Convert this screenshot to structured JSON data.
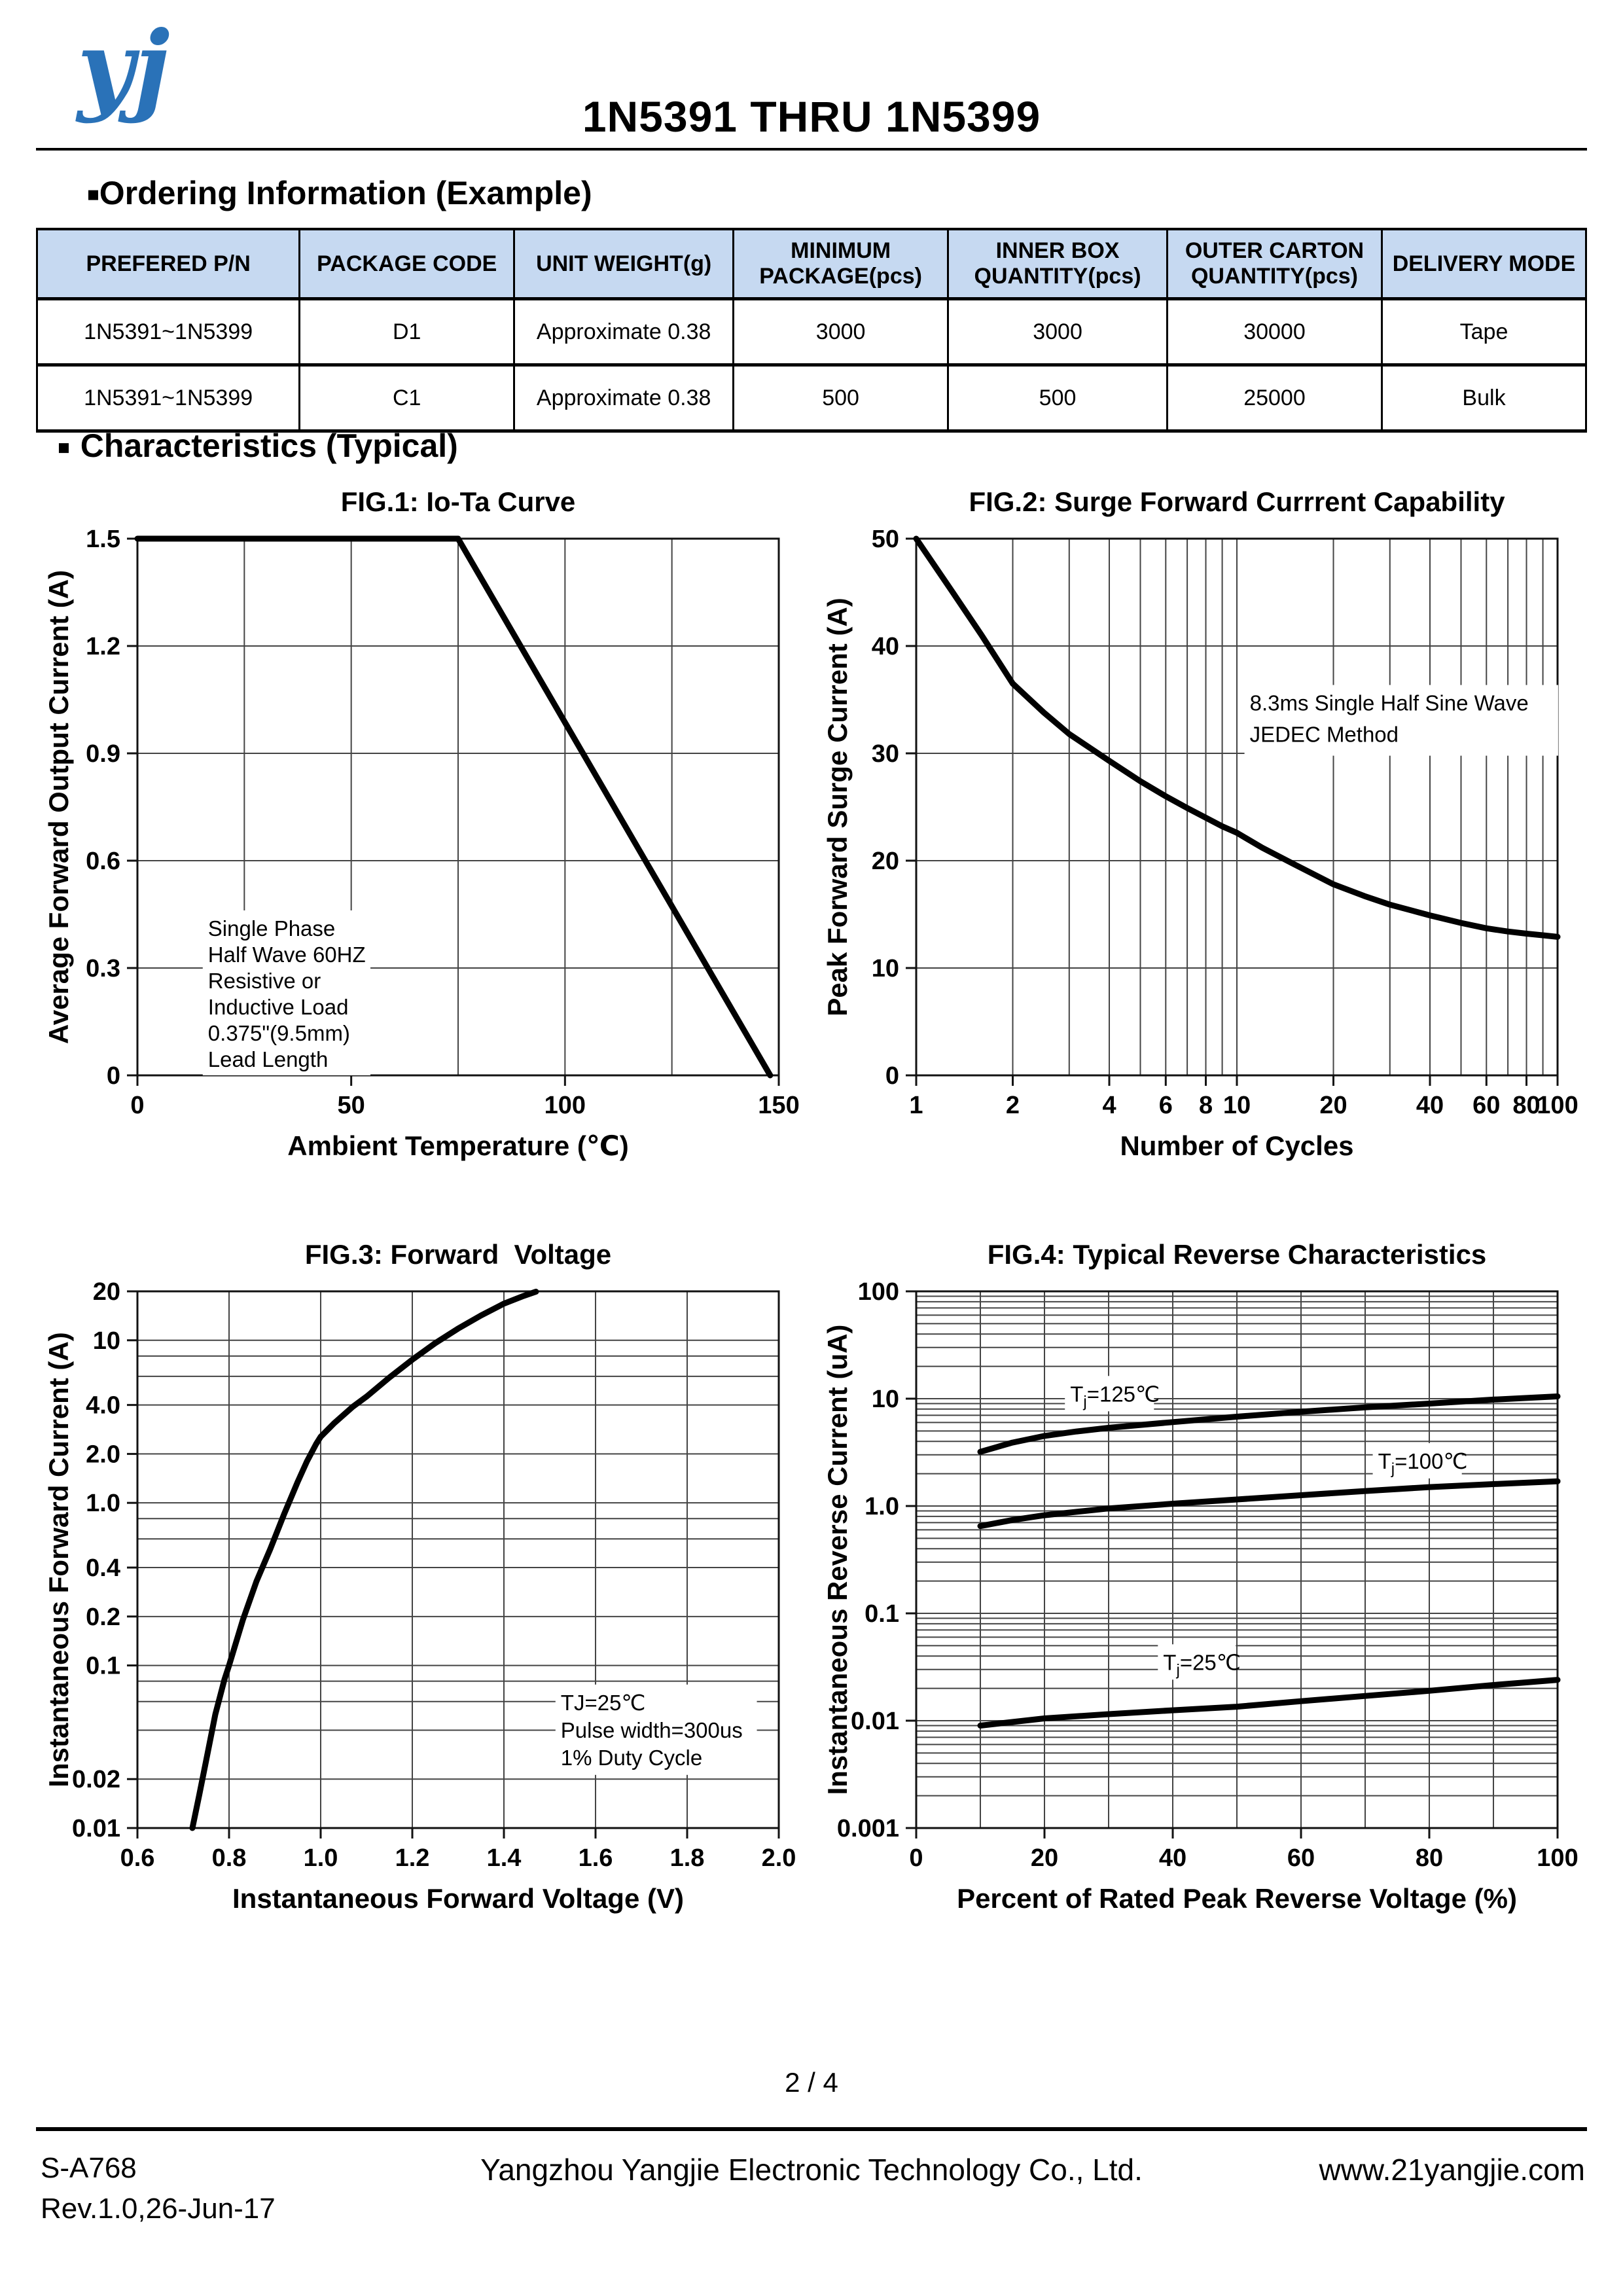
{
  "header": {
    "logo_text": "yj",
    "logo_color": "#2a72b8",
    "title": "1N5391 THRU 1N5399"
  },
  "ordering": {
    "bullet": "■",
    "heading": "Ordering Information (Example)",
    "table": {
      "headers": [
        "PREFERED P/N",
        "PACKAGE CODE",
        "UNIT WEIGHT(g)",
        "MINIMUM\nPACKAGE(pcs)",
        "INNER BOX\nQUANTITY(pcs)",
        "OUTER CARTON\nQUANTITY(pcs)",
        "DELIVERY MODE"
      ],
      "header_bg": "#c6d9f1",
      "rows": [
        [
          "1N5391~1N5399",
          "D1",
          "Approximate 0.38",
          "3000",
          "3000",
          "30000",
          "Tape"
        ],
        [
          "1N5391~1N5399",
          "C1",
          "Approximate 0.38",
          "500",
          "500",
          "25000",
          "Bulk"
        ]
      ]
    }
  },
  "characteristics": {
    "bullet": "■",
    "heading": "Characteristics (Typical)"
  },
  "chart_data": [
    {
      "type": "line",
      "title": "FIG.1: Io-Ta Curve",
      "x": {
        "scale": "linear",
        "min": 0,
        "max": 150,
        "title": "Ambient Temperature (℃)",
        "ticks": [
          {
            "v": 0,
            "label": "0"
          },
          {
            "v": 50,
            "label": "50"
          },
          {
            "v": 100,
            "label": "100"
          },
          {
            "v": 150,
            "label": "150"
          }
        ],
        "grid": [
          25,
          50,
          75,
          100,
          125
        ]
      },
      "y": {
        "scale": "linear",
        "min": 0,
        "max": 1.5,
        "title": "Average Forward Output Current (A)",
        "ticks": [
          {
            "v": 0,
            "label": "0"
          },
          {
            "v": 0.3,
            "label": "0.3"
          },
          {
            "v": 0.6,
            "label": "0.6"
          },
          {
            "v": 0.9,
            "label": "0.9"
          },
          {
            "v": 1.2,
            "label": "1.2"
          },
          {
            "v": 1.5,
            "label": "1.5"
          }
        ],
        "grid": [
          0.3,
          0.6,
          0.9,
          1.2,
          1.5
        ]
      },
      "series": [
        {
          "name": "Io vs Ta",
          "points": [
            [
              0,
              1.5
            ],
            [
              75,
              1.5
            ],
            [
              148,
              0
            ]
          ]
        }
      ],
      "annotations": [
        {
          "fx": 0.11,
          "fy": 0.7,
          "lh": 40,
          "lines": [
            "Single Phase",
            "Half Wave 60HZ",
            "Resistive or",
            "Inductive Load",
            "0.375\"(9.5mm)",
            "Lead Length"
          ]
        }
      ]
    },
    {
      "type": "line",
      "title": "FIG.2: Surge Forward Currrent Capability",
      "x": {
        "scale": "log",
        "min": 1,
        "max": 100,
        "title": "Number of Cycles",
        "ticks": [
          {
            "v": 1,
            "label": "1"
          },
          {
            "v": 2,
            "label": "2"
          },
          {
            "v": 4,
            "label": "4"
          },
          {
            "v": 6,
            "label": "6"
          },
          {
            "v": 8,
            "label": "8"
          },
          {
            "v": 10,
            "label": "10"
          },
          {
            "v": 20,
            "label": "20"
          },
          {
            "v": 40,
            "label": "40"
          },
          {
            "v": 60,
            "label": "60"
          },
          {
            "v": 80,
            "label": "80"
          },
          {
            "v": 100,
            "label": "100"
          }
        ],
        "grid": [
          2,
          3,
          4,
          5,
          6,
          7,
          8,
          9,
          10,
          20,
          30,
          40,
          50,
          60,
          70,
          80,
          90
        ]
      },
      "y": {
        "scale": "linear",
        "min": 0,
        "max": 50,
        "title": "Peak Forward Surge Current (A)",
        "ticks": [
          {
            "v": 0,
            "label": "0"
          },
          {
            "v": 10,
            "label": "10"
          },
          {
            "v": 20,
            "label": "20"
          },
          {
            "v": 30,
            "label": "30"
          },
          {
            "v": 40,
            "label": "40"
          },
          {
            "v": 50,
            "label": "50"
          }
        ],
        "grid": [
          10,
          20,
          30,
          40
        ]
      },
      "series": [
        {
          "name": "surge capability",
          "points": [
            [
              1,
              50
            ],
            [
              1.3,
              45
            ],
            [
              1.6,
              41
            ],
            [
              2,
              36.5
            ],
            [
              2.5,
              33.8
            ],
            [
              3,
              31.8
            ],
            [
              4,
              29.3
            ],
            [
              5,
              27.4
            ],
            [
              6,
              26
            ],
            [
              7,
              24.9
            ],
            [
              8,
              24
            ],
            [
              9,
              23.2
            ],
            [
              10,
              22.6
            ],
            [
              12,
              21.2
            ],
            [
              15,
              19.7
            ],
            [
              20,
              17.8
            ],
            [
              25,
              16.7
            ],
            [
              30,
              15.9
            ],
            [
              40,
              14.9
            ],
            [
              50,
              14.2
            ],
            [
              60,
              13.7
            ],
            [
              70,
              13.4
            ],
            [
              80,
              13.2
            ],
            [
              90,
              13.05
            ],
            [
              100,
              12.9
            ]
          ]
        }
      ],
      "annotations": [
        {
          "fx": 0.52,
          "fy": 0.28,
          "lh": 48,
          "lines": [
            "8.3ms Single Half Sine Wave",
            "JEDEC Method"
          ]
        }
      ]
    },
    {
      "type": "line",
      "title": "FIG.3: Forward  Voltage",
      "x": {
        "scale": "linear",
        "min": 0.6,
        "max": 2.0,
        "title": "Instantaneous Forward Voltage (V)",
        "ticks": [
          {
            "v": 0.6,
            "label": "0.6"
          },
          {
            "v": 0.8,
            "label": "0.8"
          },
          {
            "v": 1.0,
            "label": "1.0"
          },
          {
            "v": 1.2,
            "label": "1.2"
          },
          {
            "v": 1.4,
            "label": "1.4"
          },
          {
            "v": 1.6,
            "label": "1.6"
          },
          {
            "v": 1.8,
            "label": "1.8"
          },
          {
            "v": 2.0,
            "label": "2.0"
          }
        ],
        "grid": [
          0.8,
          1.0,
          1.2,
          1.4,
          1.6,
          1.8
        ]
      },
      "y": {
        "scale": "log",
        "min": 0.01,
        "max": 20,
        "title": "Instantaneous Forward Current (A)",
        "ticks": [
          {
            "v": 20,
            "label": "20"
          },
          {
            "v": 10,
            "label": "10"
          },
          {
            "v": 4,
            "label": "4.0"
          },
          {
            "v": 2,
            "label": "2.0"
          },
          {
            "v": 1,
            "label": "1.0"
          },
          {
            "v": 0.4,
            "label": "0.4"
          },
          {
            "v": 0.2,
            "label": "0.2"
          },
          {
            "v": 0.1,
            "label": "0.1"
          },
          {
            "v": 0.02,
            "label": "0.02"
          },
          {
            "v": 0.01,
            "label": "0.01"
          }
        ],
        "grid": [
          0.02,
          0.04,
          0.06,
          0.08,
          0.1,
          0.2,
          0.4,
          0.6,
          0.8,
          1,
          2,
          4,
          6,
          8,
          10
        ]
      },
      "series": [
        {
          "name": "forward voltage TJ=25C",
          "points": [
            [
              0.72,
              0.01
            ],
            [
              0.735,
              0.016
            ],
            [
              0.75,
              0.026
            ],
            [
              0.77,
              0.05
            ],
            [
              0.79,
              0.082
            ],
            [
              0.8,
              0.1
            ],
            [
              0.83,
              0.19
            ],
            [
              0.86,
              0.33
            ],
            [
              0.89,
              0.52
            ],
            [
              0.92,
              0.85
            ],
            [
              0.95,
              1.35
            ],
            [
              0.97,
              1.8
            ],
            [
              0.99,
              2.3
            ],
            [
              1.0,
              2.55
            ],
            [
              1.03,
              3.1
            ],
            [
              1.07,
              3.9
            ],
            [
              1.1,
              4.5
            ],
            [
              1.15,
              5.9
            ],
            [
              1.2,
              7.6
            ],
            [
              1.25,
              9.6
            ],
            [
              1.3,
              11.8
            ],
            [
              1.35,
              14.2
            ],
            [
              1.4,
              16.8
            ],
            [
              1.44,
              18.6
            ],
            [
              1.47,
              19.9
            ]
          ]
        }
      ],
      "annotations": [
        {
          "fx": 0.66,
          "fy": 0.74,
          "lh": 42,
          "lines": [
            "TJ=25℃",
            "Pulse width=300us",
            "1% Duty Cycle"
          ]
        }
      ]
    },
    {
      "type": "line",
      "title": "FIG.4: Typical Reverse Characteristics",
      "x": {
        "scale": "linear",
        "min": 0,
        "max": 100,
        "title": "Percent of Rated Peak Reverse Voltage (%)",
        "ticks": [
          {
            "v": 0,
            "label": "0"
          },
          {
            "v": 20,
            "label": "20"
          },
          {
            "v": 40,
            "label": "40"
          },
          {
            "v": 60,
            "label": "60"
          },
          {
            "v": 80,
            "label": "80"
          },
          {
            "v": 100,
            "label": "100"
          }
        ],
        "grid": [
          10,
          20,
          30,
          40,
          50,
          60,
          70,
          80,
          90
        ]
      },
      "y": {
        "scale": "log",
        "min": 0.001,
        "max": 100,
        "title": "Instantaneous Reverse Current (uA)",
        "ticks": [
          {
            "v": 100,
            "label": "100"
          },
          {
            "v": 10,
            "label": "10"
          },
          {
            "v": 1,
            "label": "1.0"
          },
          {
            "v": 0.1,
            "label": "0.1"
          },
          {
            "v": 0.01,
            "label": "0.01"
          },
          {
            "v": 0.001,
            "label": "0.001"
          }
        ],
        "grid": [
          0.002,
          0.003,
          0.004,
          0.005,
          0.006,
          0.007,
          0.008,
          0.009,
          0.01,
          0.02,
          0.03,
          0.04,
          0.05,
          0.06,
          0.07,
          0.08,
          0.09,
          0.1,
          0.2,
          0.3,
          0.4,
          0.5,
          0.6,
          0.7,
          0.8,
          0.9,
          1,
          2,
          3,
          4,
          5,
          6,
          7,
          8,
          9,
          10,
          20,
          30,
          40,
          50,
          60,
          70,
          80,
          90
        ]
      },
      "series": [
        {
          "name": "Tj=125C",
          "points": [
            [
              10,
              3.2
            ],
            [
              15,
              3.9
            ],
            [
              20,
              4.5
            ],
            [
              25,
              4.95
            ],
            [
              30,
              5.35
            ],
            [
              40,
              6.05
            ],
            [
              50,
              6.8
            ],
            [
              60,
              7.55
            ],
            [
              70,
              8.3
            ],
            [
              80,
              9.0
            ],
            [
              90,
              9.8
            ],
            [
              100,
              10.5
            ]
          ]
        },
        {
          "name": "Tj=100C",
          "points": [
            [
              10,
              0.65
            ],
            [
              15,
              0.74
            ],
            [
              20,
              0.82
            ],
            [
              30,
              0.95
            ],
            [
              40,
              1.05
            ],
            [
              50,
              1.15
            ],
            [
              60,
              1.26
            ],
            [
              70,
              1.38
            ],
            [
              80,
              1.5
            ],
            [
              90,
              1.6
            ],
            [
              100,
              1.7
            ]
          ]
        },
        {
          "name": "Tj=25C",
          "points": [
            [
              10,
              0.009
            ],
            [
              20,
              0.0105
            ],
            [
              30,
              0.0115
            ],
            [
              40,
              0.0125
            ],
            [
              50,
              0.0135
            ],
            [
              60,
              0.0152
            ],
            [
              70,
              0.017
            ],
            [
              80,
              0.019
            ],
            [
              90,
              0.0215
            ],
            [
              100,
              0.024
            ]
          ]
        }
      ],
      "annotations": [
        {
          "fx": 0.24,
          "fy": 0.165,
          "lines": [
            {
              "pre": "T",
              "sub": "j",
              "post": "=125℃"
            }
          ]
        },
        {
          "fx": 0.72,
          "fy": 0.29,
          "lines": [
            {
              "pre": "T",
              "sub": "j",
              "post": "=100℃"
            }
          ]
        },
        {
          "fx": 0.385,
          "fy": 0.665,
          "lines": [
            {
              "pre": "T",
              "sub": "j",
              "post": "=25℃"
            }
          ]
        }
      ]
    }
  ],
  "footer": {
    "page_number": "2 / 4",
    "doc_code": "S-A768",
    "revision": "Rev.1.0,26-Jun-17",
    "company": "Yangzhou Yangjie Electronic Technology Co., Ltd.",
    "website": "www.21yangjie.com"
  }
}
